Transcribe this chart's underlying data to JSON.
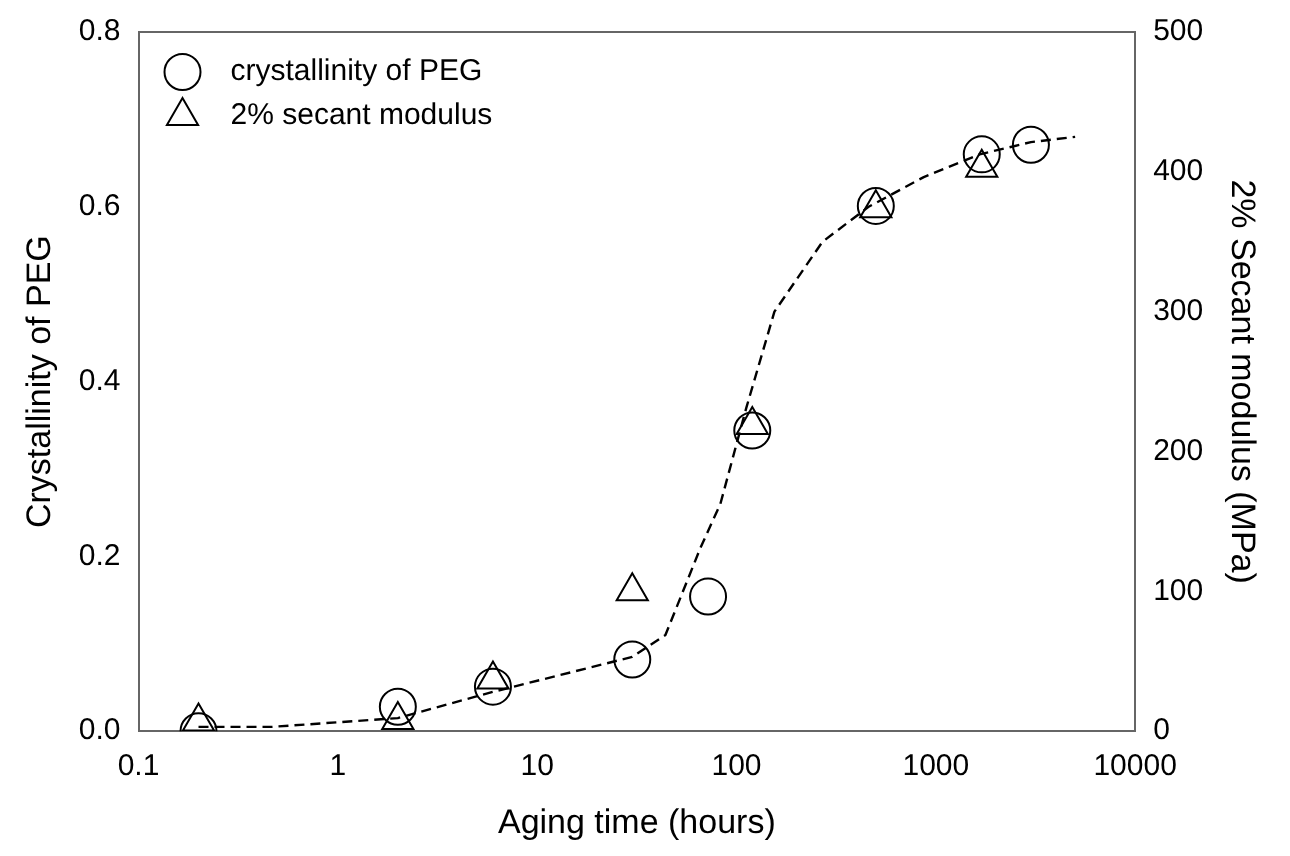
{
  "chart_data": {
    "type": "scatter",
    "xlabel": "Aging time (hours)",
    "ylabel": "Crystallinity of PEG",
    "y2label": "2% Secant modulus (MPa)",
    "log": "x",
    "xlim": [
      0.1,
      10000
    ],
    "xticks": [
      0.1,
      1,
      10,
      100,
      1000,
      10000
    ],
    "ylim": [
      0,
      0.8
    ],
    "yticks": [
      {
        "value": 0,
        "label": "0.0"
      },
      0.2,
      0.4,
      0.6,
      0.8
    ],
    "y2lim": [
      0,
      500
    ],
    "y2ticks": [
      0,
      100,
      200,
      300,
      400,
      500
    ],
    "grid": false,
    "legend": "top left",
    "series": [
      {
        "name": "crystallinity of PEG",
        "type": "scatter",
        "marker": "circle",
        "color": "#000000",
        "x": [
          0.2,
          2,
          6,
          30,
          72,
          120,
          500,
          1700,
          3000
        ],
        "values": [
          0,
          0.028,
          0.051,
          0.082,
          0.154,
          0.344,
          0.601,
          0.66,
          0.671
        ]
      },
      {
        "name": "2% secant modulus",
        "type": "scatter",
        "marker": "triangle",
        "axis": "y2",
        "color": "#000000",
        "x": [
          0.2,
          2,
          6,
          30,
          120,
          500,
          1700
        ],
        "values": [
          7,
          8,
          37,
          100,
          219,
          374,
          403
        ]
      },
      {
        "type": "line",
        "marker": "none",
        "line_style": "dashed",
        "color": "#000000",
        "x": [
          0.2,
          0.47,
          2,
          6,
          30,
          44,
          66,
          83,
          112,
          155,
          270,
          460,
          870,
          1660,
          3000,
          5000
        ],
        "values": [
          0.005,
          0.005,
          0.015,
          0.045,
          0.085,
          0.11,
          0.21,
          0.26,
          0.37,
          0.48,
          0.56,
          0.6,
          0.634,
          0.66,
          0.674,
          0.68
        ]
      }
    ]
  }
}
